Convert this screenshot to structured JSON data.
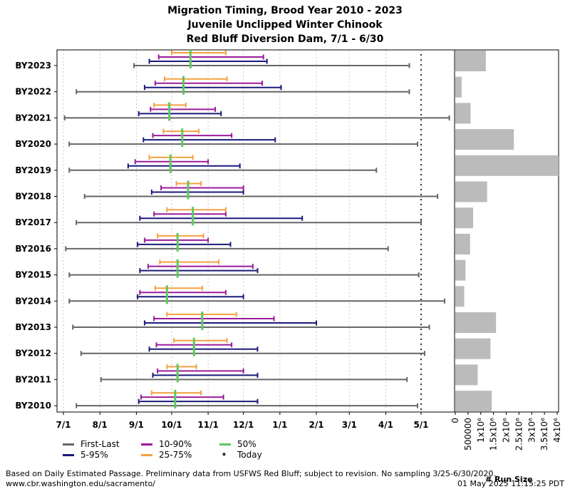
{
  "title_lines": [
    "Migration Timing, Brood Year 2010 - 2023",
    "Juvenile Unclipped Winter Chinook",
    "Red Bluff Diversion Dam, 7/1 - 6/30"
  ],
  "colors": {
    "first_last": "#666666",
    "p5_95": "#1a1a7a",
    "p10_90": "#9b1b9b",
    "p25_75": "#f5a040",
    "p50": "#5cc95c",
    "today": "#333333",
    "run_bar": "#bbbbbb",
    "grid": "#c8c8c8"
  },
  "legend": {
    "first_last": "First-Last",
    "p5_95": "5-95%",
    "p10_90": "10-90%",
    "p25_75": "25-75%",
    "p50": "50%",
    "today": "Today"
  },
  "footer": {
    "note": "Based on Daily Estimated Passage. Preliminary data from USFWS Red Bluff; subject to revision. No sampling 3/25-6/30/2020.",
    "url": "www.cbr.washington.edu/sacramento/",
    "timestamp": "01 May 2025 11:15:25 PDT"
  },
  "chart_data": [
    {
      "type": "timing-range",
      "x_axis": {
        "start_date": "7/1",
        "tick_labels": [
          "7/1",
          "8/1",
          "9/1",
          "10/1",
          "11/1",
          "12/1",
          "1/1",
          "2/1",
          "3/1",
          "4/1",
          "5/1"
        ],
        "tick_days": [
          0,
          31,
          62,
          92,
          123,
          153,
          184,
          215,
          243,
          274,
          304
        ],
        "range": [
          0,
          304
        ],
        "grid": "vertical dotted"
      },
      "today": "5/1",
      "today_day": 304,
      "rows": [
        {
          "label": "BY2023",
          "first": "8/30",
          "p5": "9/12",
          "p10": "9/20",
          "p25": "10/1",
          "p50": "10/17",
          "p75": "11/16",
          "p90": "12/18",
          "p95": "12/21",
          "last": "4/21"
        },
        {
          "label": "BY2022",
          "first": "7/12",
          "p5": "9/8",
          "p10": "9/17",
          "p25": "9/25",
          "p50": "10/11",
          "p75": "11/17",
          "p90": "12/17",
          "p95": "1/2",
          "last": "4/21"
        },
        {
          "label": "BY2021",
          "first": "7/2",
          "p5": "9/3",
          "p10": "9/13",
          "p25": "9/16",
          "p50": "9/29",
          "p75": "10/13",
          "p90": "11/7",
          "p95": "11/12",
          "last": "5/25"
        },
        {
          "label": "BY2020",
          "first": "7/6",
          "p5": "9/7",
          "p10": "9/15",
          "p25": "9/24",
          "p50": "10/10",
          "p75": "10/24",
          "p90": "11/21",
          "p95": "12/28",
          "last": "4/28"
        },
        {
          "label": "BY2019",
          "first": "7/6",
          "p5": "8/25",
          "p10": "8/31",
          "p25": "9/12",
          "p50": "9/30",
          "p75": "10/19",
          "p90": "11/1",
          "p95": "11/28",
          "last": "3/24"
        },
        {
          "label": "BY2018",
          "first": "7/19",
          "p5": "9/14",
          "p10": "9/22",
          "p25": "10/5",
          "p50": "10/15",
          "p75": "10/26",
          "p90": "12/1",
          "p95": "12/1",
          "last": "5/15"
        },
        {
          "label": "BY2017",
          "first": "7/12",
          "p5": "9/4",
          "p10": "9/16",
          "p25": "9/27",
          "p50": "10/19",
          "p75": "11/16",
          "p90": "11/16",
          "p95": "1/20",
          "last": "5/1"
        },
        {
          "label": "BY2016",
          "first": "7/3",
          "p5": "9/2",
          "p10": "9/8",
          "p25": "9/19",
          "p50": "10/6",
          "p75": "10/28",
          "p90": "11/1",
          "p95": "11/20",
          "last": "4/3"
        },
        {
          "label": "BY2015",
          "first": "7/6",
          "p5": "9/4",
          "p10": "9/11",
          "p25": "9/21",
          "p50": "10/6",
          "p75": "11/10",
          "p90": "12/9",
          "p95": "12/13",
          "last": "4/29"
        },
        {
          "label": "BY2014",
          "first": "7/6",
          "p5": "9/2",
          "p10": "9/4",
          "p25": "9/17",
          "p50": "9/27",
          "p75": "10/27",
          "p90": "11/16",
          "p95": "12/1",
          "last": "5/21"
        },
        {
          "label": "BY2013",
          "first": "7/9",
          "p5": "9/8",
          "p10": "9/16",
          "p25": "9/27",
          "p50": "10/27",
          "p75": "11/25",
          "p90": "12/27",
          "p95": "2/1",
          "last": "5/8"
        },
        {
          "label": "BY2012",
          "first": "7/16",
          "p5": "9/12",
          "p10": "9/18",
          "p25": "10/3",
          "p50": "10/20",
          "p75": "11/17",
          "p90": "11/21",
          "p95": "12/13",
          "last": "5/4"
        },
        {
          "label": "BY2011",
          "first": "8/2",
          "p5": "9/15",
          "p10": "9/19",
          "p25": "9/27",
          "p50": "10/6",
          "p75": "10/22",
          "p90": "12/1",
          "p95": "12/13",
          "last": "4/19"
        },
        {
          "label": "BY2010",
          "first": "7/12",
          "p5": "9/3",
          "p10": "9/5",
          "p25": "9/14",
          "p50": "10/4",
          "p75": "10/26",
          "p90": "11/14",
          "p95": "12/13",
          "last": "4/28"
        }
      ]
    },
    {
      "type": "bar",
      "orientation": "horizontal",
      "x_label": "# Run Size",
      "x_tick_labels": [
        "0",
        "500000",
        "1x10⁶",
        "1.5x10⁶",
        "2x10⁶",
        "2.5x10⁶",
        "3x10⁶",
        "3.5x10⁶",
        "4x10⁶"
      ],
      "x_range": [
        0,
        4000000
      ],
      "categories": [
        "BY2023",
        "BY2022",
        "BY2021",
        "BY2020",
        "BY2019",
        "BY2018",
        "BY2017",
        "BY2016",
        "BY2015",
        "BY2014",
        "BY2013",
        "BY2012",
        "BY2011",
        "BY2010"
      ],
      "values": [
        1200000,
        250000,
        600000,
        2300000,
        4100000,
        1250000,
        700000,
        580000,
        400000,
        350000,
        1600000,
        1380000,
        880000,
        1430000
      ]
    }
  ]
}
